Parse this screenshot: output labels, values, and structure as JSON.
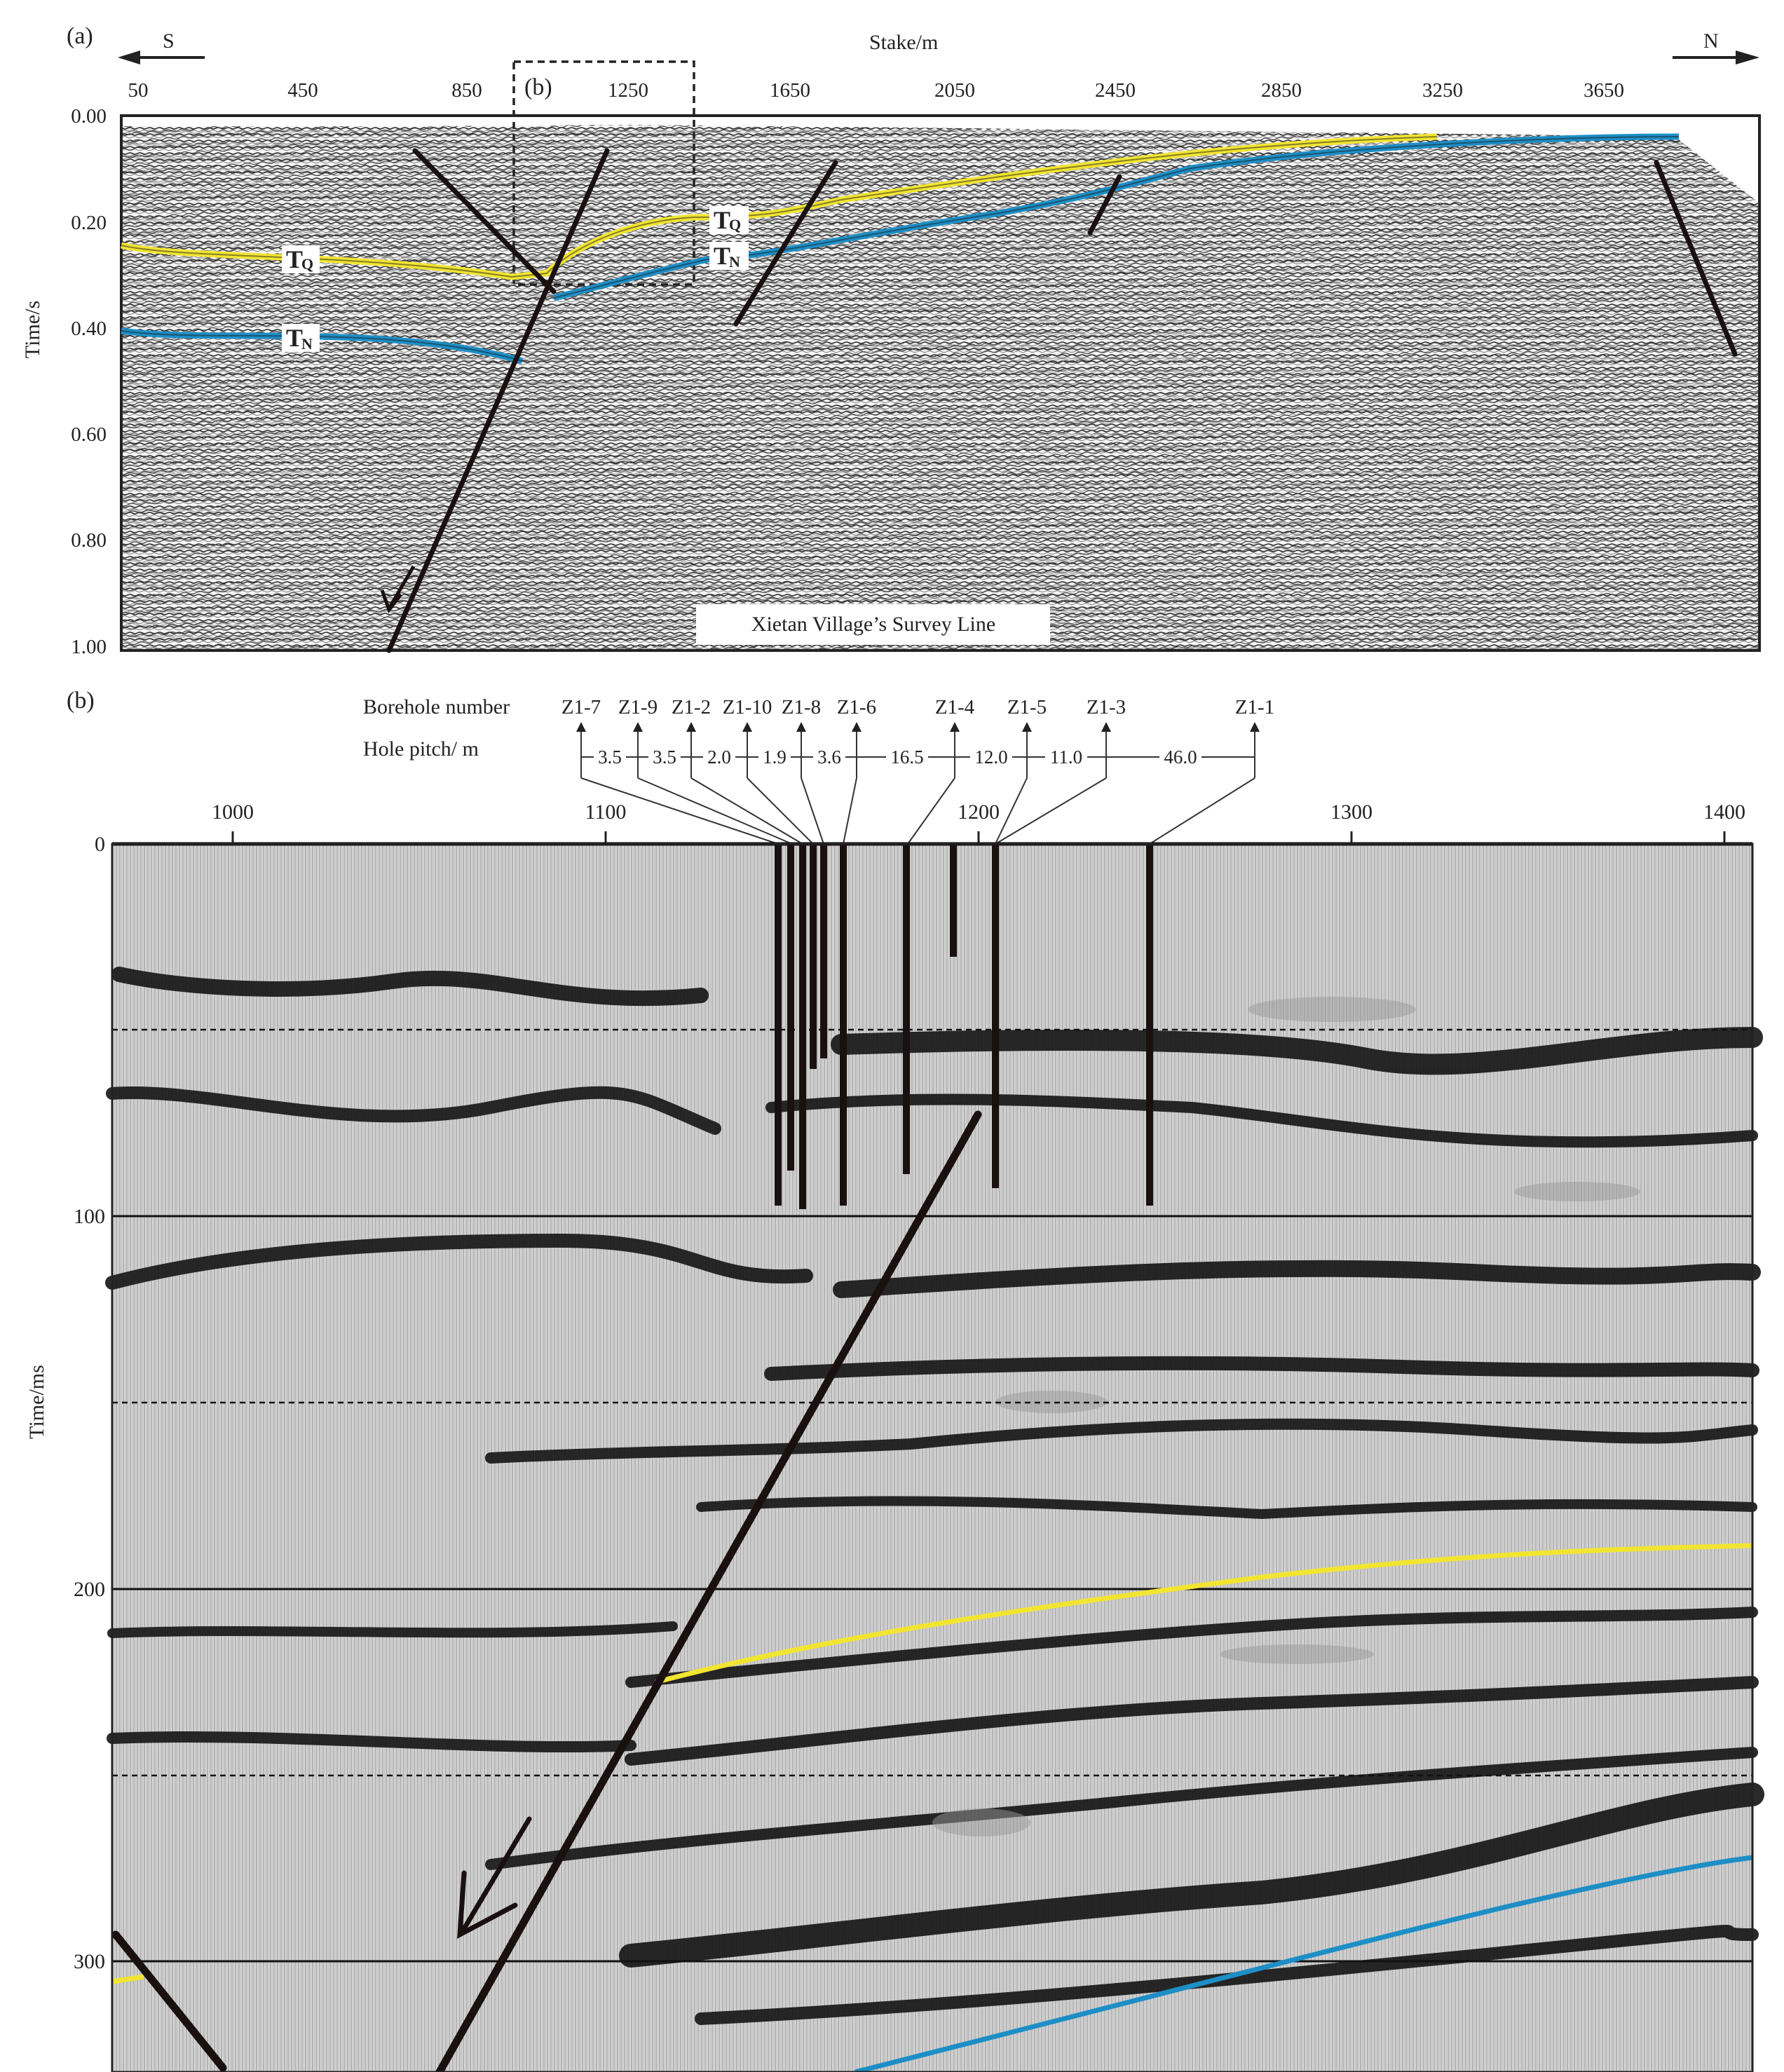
{
  "panel_a": {
    "label": "(a)",
    "south_label": "S",
    "north_label": "N",
    "x_axis_title": "Stake/m",
    "x_ticks": [
      "50",
      "450",
      "850",
      "1250",
      "1650",
      "2050",
      "2450",
      "2850",
      "3250",
      "3650"
    ],
    "y_axis_title": "Time/s",
    "y_ticks": [
      "0.00",
      "0.20",
      "0.40",
      "0.60",
      "0.80",
      "1.00"
    ],
    "inset_label": "(b)",
    "horizon_tq_label": "T",
    "horizon_tq_sub": "Q",
    "horizon_tn_label": "T",
    "horizon_tn_sub": "N",
    "survey_line_label": "Xietan  Village’s Survey  Line"
  },
  "panel_b": {
    "label": "(b)",
    "borehole_header": "Borehole number",
    "pitch_header": "Hole pitch/ m",
    "boreholes": [
      "Z1-7",
      "Z1-9",
      "Z1-2",
      "Z1-10",
      "Z1-8",
      "Z1-6",
      "Z1-4",
      "Z1-5",
      "Z1-3",
      "Z1-1"
    ],
    "pitches": [
      "3.5",
      "3.5",
      "2.0",
      "1.9",
      "3.6",
      "16.5",
      "12.0",
      "11.0",
      "46.0"
    ],
    "x_ticks": [
      "1000",
      "1100",
      "1200",
      "1300",
      "1400"
    ],
    "y_axis_title": "Time/ms",
    "y_ticks": [
      "0",
      "100",
      "200",
      "300"
    ]
  },
  "colors": {
    "tq_horizon": "#f2e531",
    "tn_horizon": "#1d8ec6",
    "fault": "#1a1010",
    "frame": "#222222"
  }
}
